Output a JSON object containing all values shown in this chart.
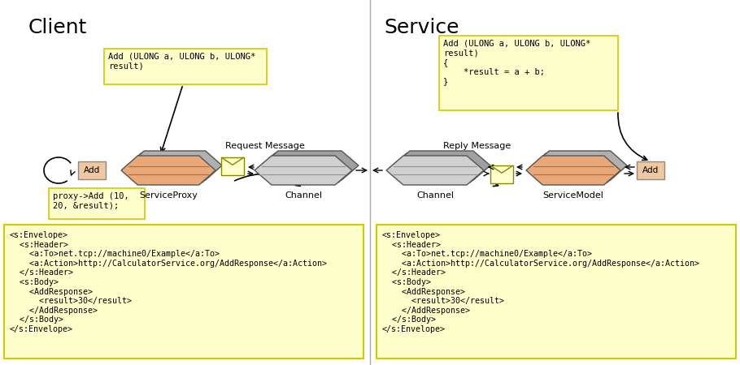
{
  "title_client": "Client",
  "title_service": "Service",
  "bg_color": "#ffffff",
  "yellow": "#ffffcc",
  "yellow_border": "#cccc00",
  "salmon": "#e8a878",
  "light_peach": "#f0c8a0",
  "gray_channel": "#c8c8c8",
  "client_code_box": "Add (ULONG a, ULONG b, ULONG*\nresult)",
  "service_code_box": "Add (ULONG a, ULONG b, ULONG*\nresult)\n{\n    *result = a + b;\n}",
  "proxy_call_box": "proxy->Add (10,\n20, &result);",
  "request_label": "Request Message",
  "reply_label": "Reply Message",
  "service_proxy_label": "ServiceProxy",
  "channel_label_left": "Channel",
  "channel_label_right": "Channel",
  "service_model_label": "ServiceModel",
  "add_label": "Add",
  "xml_content": "<s:Envelope>\n  <s:Header>\n    <a:To>net.tcp://machine0/Example</a:To>\n    <a:Action>http://CalculatorService.org/AddResponse</a:Action>\n  </s:Header>\n  <s:Body>\n    <AddResponse>\n      <result>30</result>\n    </AddResponse>\n  </s:Body>\n</s:Envelope>"
}
